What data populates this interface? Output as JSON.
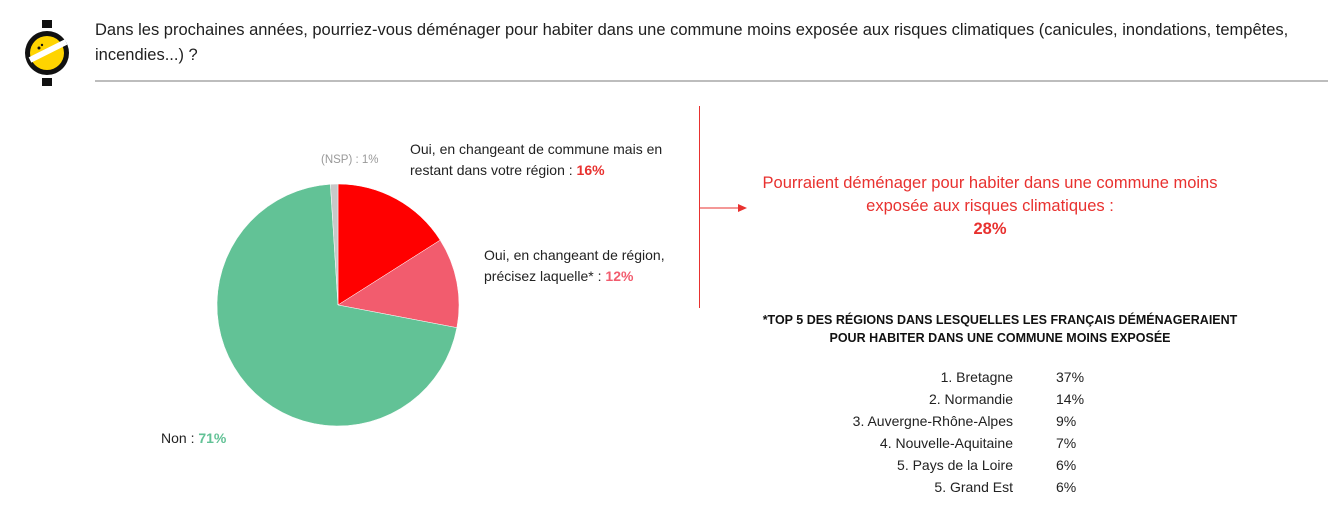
{
  "header": {
    "question": "Dans les prochaines années, pourriez-vous déménager pour habiter dans une commune moins exposée aux risques climatiques (canicules, inondations, tempêtes, incendies...) ?"
  },
  "colors": {
    "non": "#62c296",
    "oui_region": "#ff0000",
    "oui_autre_region": "#f25c6e",
    "nsp": "#c8c8c8",
    "accent": "#e8312f"
  },
  "chart_data": {
    "type": "pie",
    "slices": [
      {
        "label": "Oui, en changeant de commune mais en restant dans votre région",
        "value": 16,
        "color": "#ff0000"
      },
      {
        "label": "Oui, en changeant de région, précisez laquelle*",
        "value": 12,
        "color": "#f25c6e"
      },
      {
        "label": "Non",
        "value": 71,
        "color": "#62c296"
      },
      {
        "label": "(NSP)",
        "value": 1,
        "color": "#c8c8c8"
      }
    ]
  },
  "labels": {
    "nsp_text": "(NSP) : 1%",
    "oui_region_text": "Oui, en changeant de commune mais en restant dans votre région : ",
    "oui_region_value": "16%",
    "oui_autre_text": "Oui, en changeant de région, précisez laquelle* : ",
    "oui_autre_value": "12%",
    "non_text": "Non : ",
    "non_value": "71%"
  },
  "callout": {
    "text": "Pourraient déménager pour habiter dans une commune moins exposée aux risques climatiques :",
    "value": "28%"
  },
  "top_regions": {
    "title": "*TOP 5 DES RÉGIONS DANS LESQUELLES LES FRANÇAIS DÉMÉNAGERAIENT POUR HABITER DANS UNE COMMUNE MOINS EXPOSÉE",
    "rows": [
      {
        "name": "1. Bretagne",
        "pct": "37%"
      },
      {
        "name": "2. Normandie",
        "pct": "14%"
      },
      {
        "name": "3. Auvergne-Rhône-Alpes",
        "pct": "9%"
      },
      {
        "name": "4. Nouvelle-Aquitaine",
        "pct": "7%"
      },
      {
        "name": "5. Pays de la Loire",
        "pct": "6%"
      },
      {
        "name": "5. Grand Est",
        "pct": "6%"
      }
    ]
  }
}
